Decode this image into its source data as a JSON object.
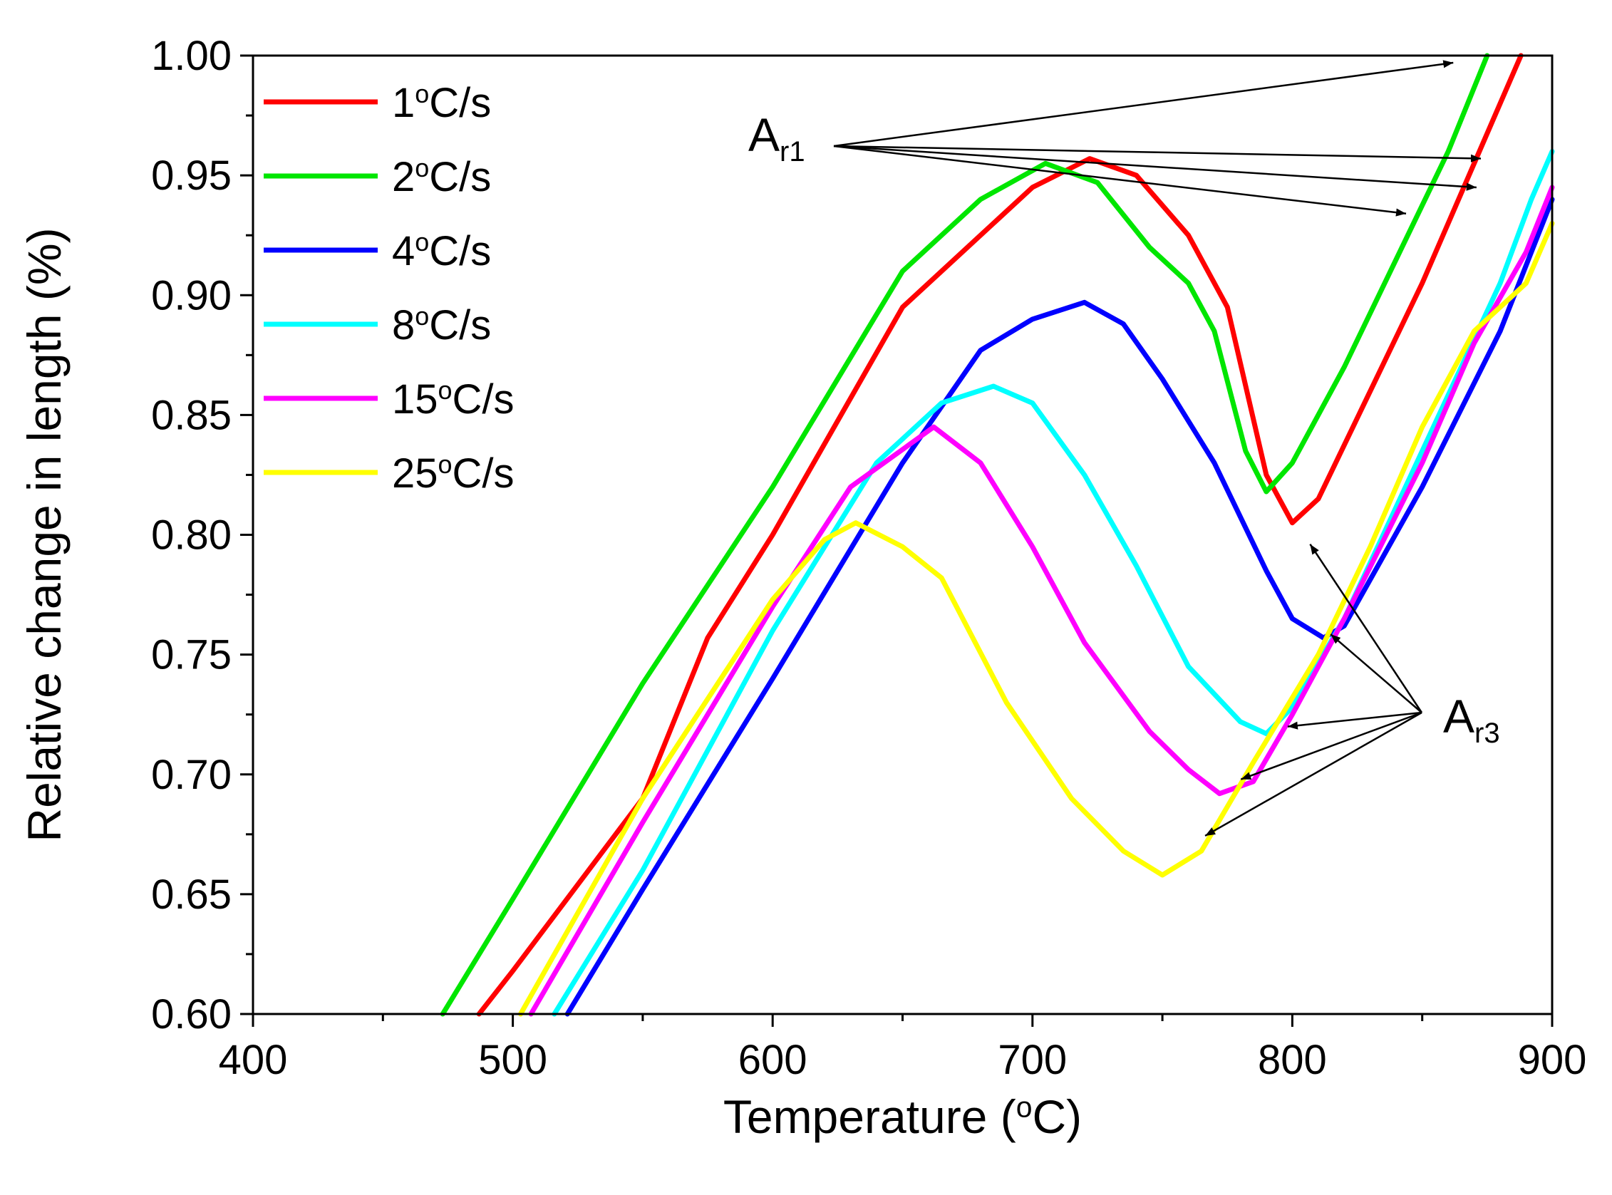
{
  "chart_data": {
    "type": "line",
    "title": "",
    "xlabel": "Temperature (°C)",
    "ylabel": "Relative change in length (%)",
    "xlim": [
      400,
      900
    ],
    "ylim": [
      0.6,
      1.0
    ],
    "xticks": [
      400,
      500,
      600,
      700,
      800,
      900
    ],
    "xtick_labels": [
      "400",
      "500",
      "600",
      "700",
      "800",
      "900"
    ],
    "yticks": [
      0.6,
      0.65,
      0.7,
      0.75,
      0.8,
      0.85,
      0.9,
      0.95,
      1.0
    ],
    "ytick_labels": [
      "0.60",
      "0.65",
      "0.70",
      "0.75",
      "0.80",
      "0.85",
      "0.90",
      "0.95",
      "1.00"
    ],
    "grid": false,
    "legend_position": "top-left",
    "series": [
      {
        "name": "1°C/s",
        "value": "1",
        "unit": "°C/s",
        "color": "#ff0000",
        "points": [
          [
            487,
            0.6
          ],
          [
            500,
            0.618
          ],
          [
            550,
            0.69
          ],
          [
            575,
            0.757
          ],
          [
            600,
            0.8
          ],
          [
            650,
            0.895
          ],
          [
            700,
            0.945
          ],
          [
            722,
            0.957
          ],
          [
            740,
            0.95
          ],
          [
            760,
            0.925
          ],
          [
            775,
            0.895
          ],
          [
            790,
            0.825
          ],
          [
            800,
            0.805
          ],
          [
            810,
            0.815
          ],
          [
            830,
            0.86
          ],
          [
            850,
            0.905
          ],
          [
            870,
            0.955
          ],
          [
            888,
            1.0
          ]
        ]
      },
      {
        "name": "2°C/s",
        "value": "2",
        "unit": "°C/s",
        "color": "#00e600",
        "points": [
          [
            473,
            0.6
          ],
          [
            500,
            0.648
          ],
          [
            550,
            0.738
          ],
          [
            600,
            0.82
          ],
          [
            650,
            0.91
          ],
          [
            680,
            0.94
          ],
          [
            705,
            0.955
          ],
          [
            725,
            0.947
          ],
          [
            745,
            0.92
          ],
          [
            760,
            0.905
          ],
          [
            770,
            0.885
          ],
          [
            782,
            0.835
          ],
          [
            790,
            0.818
          ],
          [
            800,
            0.83
          ],
          [
            820,
            0.87
          ],
          [
            840,
            0.915
          ],
          [
            860,
            0.96
          ],
          [
            875,
            1.0
          ]
        ]
      },
      {
        "name": "4°C/s",
        "value": "4",
        "unit": "°C/s",
        "color": "#0000ff",
        "points": [
          [
            521,
            0.6
          ],
          [
            550,
            0.652
          ],
          [
            600,
            0.74
          ],
          [
            650,
            0.83
          ],
          [
            680,
            0.877
          ],
          [
            700,
            0.89
          ],
          [
            720,
            0.897
          ],
          [
            735,
            0.888
          ],
          [
            750,
            0.865
          ],
          [
            770,
            0.83
          ],
          [
            790,
            0.785
          ],
          [
            800,
            0.765
          ],
          [
            812,
            0.757
          ],
          [
            820,
            0.762
          ],
          [
            850,
            0.82
          ],
          [
            880,
            0.885
          ],
          [
            900,
            0.94
          ]
        ]
      },
      {
        "name": "8°C/s",
        "value": "8",
        "unit": "°C/s",
        "color": "#00ffff",
        "points": [
          [
            516,
            0.6
          ],
          [
            550,
            0.66
          ],
          [
            600,
            0.76
          ],
          [
            640,
            0.83
          ],
          [
            665,
            0.855
          ],
          [
            685,
            0.862
          ],
          [
            700,
            0.855
          ],
          [
            720,
            0.825
          ],
          [
            740,
            0.787
          ],
          [
            760,
            0.745
          ],
          [
            780,
            0.722
          ],
          [
            790,
            0.717
          ],
          [
            800,
            0.728
          ],
          [
            820,
            0.765
          ],
          [
            850,
            0.835
          ],
          [
            880,
            0.905
          ],
          [
            892,
            0.94
          ],
          [
            900,
            0.96
          ]
        ]
      },
      {
        "name": "15°C/s",
        "value": "15",
        "unit": "°C/s",
        "color": "#ff00ff",
        "points": [
          [
            507,
            0.6
          ],
          [
            550,
            0.68
          ],
          [
            600,
            0.77
          ],
          [
            630,
            0.82
          ],
          [
            662,
            0.845
          ],
          [
            680,
            0.83
          ],
          [
            700,
            0.795
          ],
          [
            720,
            0.755
          ],
          [
            745,
            0.718
          ],
          [
            760,
            0.702
          ],
          [
            772,
            0.692
          ],
          [
            785,
            0.697
          ],
          [
            800,
            0.725
          ],
          [
            820,
            0.765
          ],
          [
            850,
            0.83
          ],
          [
            870,
            0.88
          ],
          [
            890,
            0.918
          ],
          [
            900,
            0.945
          ]
        ]
      },
      {
        "name": "25°C/s",
        "value": "25",
        "unit": "°C/s",
        "color": "#ffff00",
        "points": [
          [
            503,
            0.6
          ],
          [
            550,
            0.69
          ],
          [
            600,
            0.773
          ],
          [
            620,
            0.798
          ],
          [
            632,
            0.805
          ],
          [
            650,
            0.795
          ],
          [
            665,
            0.782
          ],
          [
            690,
            0.73
          ],
          [
            715,
            0.69
          ],
          [
            735,
            0.668
          ],
          [
            750,
            0.658
          ],
          [
            765,
            0.668
          ],
          [
            785,
            0.705
          ],
          [
            810,
            0.75
          ],
          [
            830,
            0.795
          ],
          [
            850,
            0.845
          ],
          [
            870,
            0.885
          ],
          [
            890,
            0.905
          ],
          [
            900,
            0.93
          ]
        ]
      }
    ],
    "annotations": [
      {
        "label": "A",
        "subscript": "r1",
        "targets": [
          "1°C/s",
          "2°C/s",
          "4°C/s",
          "8°C/s"
        ]
      },
      {
        "label": "A",
        "subscript": "r3",
        "targets": [
          "1°C/s",
          "4°C/s",
          "8°C/s",
          "15°C/s",
          "25°C/s"
        ]
      }
    ]
  }
}
